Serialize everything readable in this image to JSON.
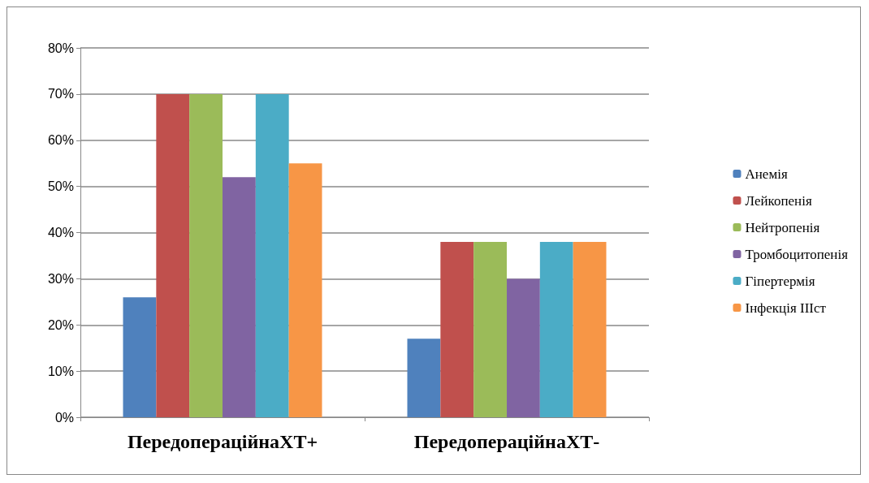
{
  "chart_data": {
    "type": "bar",
    "categories": [
      "ПередопераційнаХТ+",
      "ПередопераційнаХТ-"
    ],
    "series": [
      {
        "name": "Анемія",
        "color": "#4f81bd",
        "values": [
          26,
          17
        ]
      },
      {
        "name": "Лейкопенія",
        "color": "#c0504d",
        "values": [
          70,
          38
        ]
      },
      {
        "name": "Нейтропенія",
        "color": "#9bbb59",
        "values": [
          70,
          38
        ]
      },
      {
        "name": "Тромбоцитопенія",
        "color": "#8064a2",
        "values": [
          52,
          30
        ]
      },
      {
        "name": "Гіпертермія",
        "color": "#4bacc6",
        "values": [
          70,
          38
        ]
      },
      {
        "name": "Інфекція ІІІст",
        "color": "#f79646",
        "values": [
          55,
          38
        ]
      }
    ],
    "ylim": [
      0,
      80
    ],
    "yticks": [
      {
        "value": 0,
        "label": "0%"
      },
      {
        "value": 10,
        "label": "10%"
      },
      {
        "value": 20,
        "label": "20%"
      },
      {
        "value": 30,
        "label": "30%"
      },
      {
        "value": 40,
        "label": "40%"
      },
      {
        "value": 50,
        "label": "50%"
      },
      {
        "value": 60,
        "label": "60%"
      },
      {
        "value": 70,
        "label": "70%"
      },
      {
        "value": 80,
        "label": "80%"
      }
    ],
    "grid": "y",
    "legend": "right"
  }
}
